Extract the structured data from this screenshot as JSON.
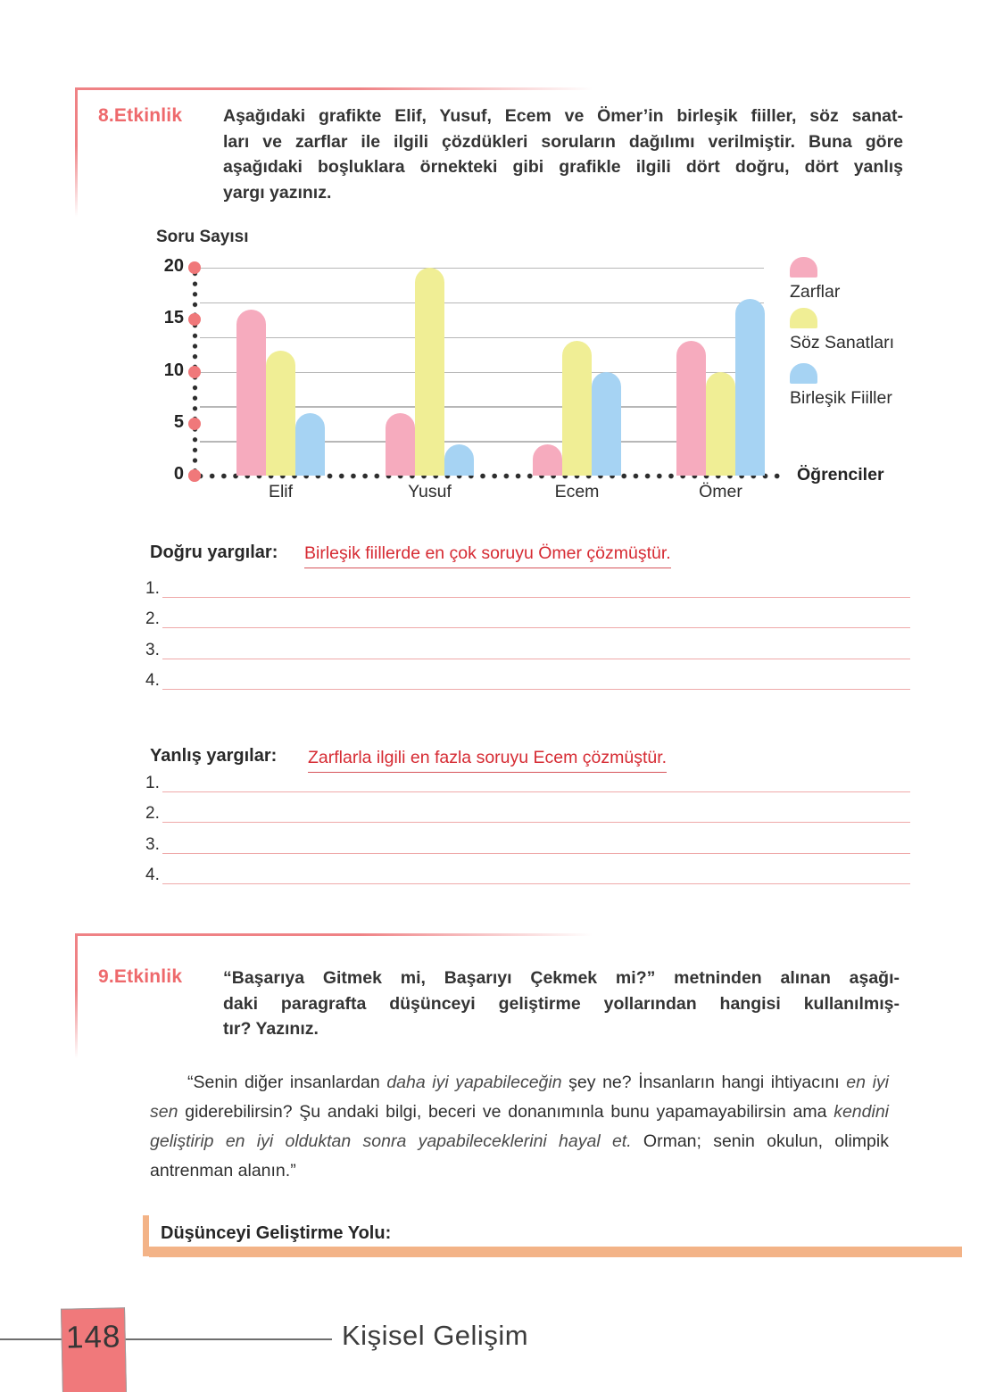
{
  "activity8": {
    "label": "8.Etkinlik",
    "instruction_lines": [
      "Aşağıdaki grafikte  Elif, Yusuf, Ecem ve Ömer’in birleşik fiiller, söz sanat-",
      "ları ve zarflar ile ilgili çözdükleri soruların dağılımı verilmiştir. Buna göre",
      "aşağıdaki boşluklara örnekteki gibi grafikle ilgili dört doğru, dört yanlış",
      "yargı yazınız."
    ],
    "dogru": {
      "label": "Doğru yargılar:",
      "sample": "Birleşik fiillerde en çok soruyu Ömer çözmüştür.",
      "numbers": [
        "1.",
        "2.",
        "3.",
        "4."
      ]
    },
    "yanlis": {
      "label": "Yanlış yargılar:",
      "sample": "Zarflarla ilgili en fazla soruyu Ecem çözmüştür.",
      "numbers": [
        "1.",
        "2.",
        "3.",
        "4."
      ]
    }
  },
  "chart_data": {
    "type": "bar",
    "ylabel": "Soru Sayısı",
    "xlabel": "Öğrenciler",
    "categories": [
      "Elif",
      "Yusuf",
      "Ecem",
      "Ömer"
    ],
    "series": [
      {
        "name": "Zarflar",
        "color": "#f6abbe",
        "values": [
          16,
          6,
          3,
          13
        ]
      },
      {
        "name": "Söz Sanatları",
        "color": "#f0ee95",
        "values": [
          12,
          20,
          13,
          10
        ]
      },
      {
        "name": "Birleşik Fiiller",
        "color": "#a6d3f3",
        "values": [
          6,
          3,
          10,
          17
        ]
      }
    ],
    "ylim": [
      0,
      20
    ],
    "yticks": [
      0,
      5,
      10,
      15,
      20
    ],
    "grid": true,
    "legend_position": "right",
    "tick_dot_color": "#f0787a",
    "axis_dot_color": "#2d2d2d"
  },
  "activity9": {
    "label": "9.Etkinlik",
    "heading_lines": [
      "“Başarıya Gitmek mi, Başarıyı Çekmek mi?” metninden alınan aşağı-",
      "daki paragrafta düşünceyi geliştirme yollarından hangisi kullanılmış-",
      "tır? Yazınız."
    ],
    "paragraph_segments": [
      {
        "text": "“Senin diğer insanlardan ",
        "italic": false
      },
      {
        "text": "daha iyi yapabileceğin",
        "italic": true
      },
      {
        "text": " şey ne? İnsanların hangi ihtiyacını ",
        "italic": false
      },
      {
        "text": "en iyi sen",
        "italic": true
      },
      {
        "text": " giderebilirsin? Şu andaki bilgi, beceri ve donanımınla bunu yapamayabilirsin ama ",
        "italic": false
      },
      {
        "text": "kendini geliştirip en iyi olduktan sonra yapabileceklerini hayal et.",
        "italic": true
      },
      {
        "text": " Orman; senin okulun, olimpik antrenman alanın.”",
        "italic": false
      }
    ],
    "dusunce_label": "Düşünceyi Geliştirme Yolu:"
  },
  "footer": {
    "page_number": "148",
    "chapter_title": "Kişisel Gelişim"
  },
  "colors": {
    "accent_salmon": "#ee696c",
    "bracket_pink": "#ef8285",
    "sample_red": "#d62b33",
    "answer_rule_pink": "#efa9a9",
    "orange_bar": "#f3b387",
    "banner_pink": "#f0797b"
  }
}
